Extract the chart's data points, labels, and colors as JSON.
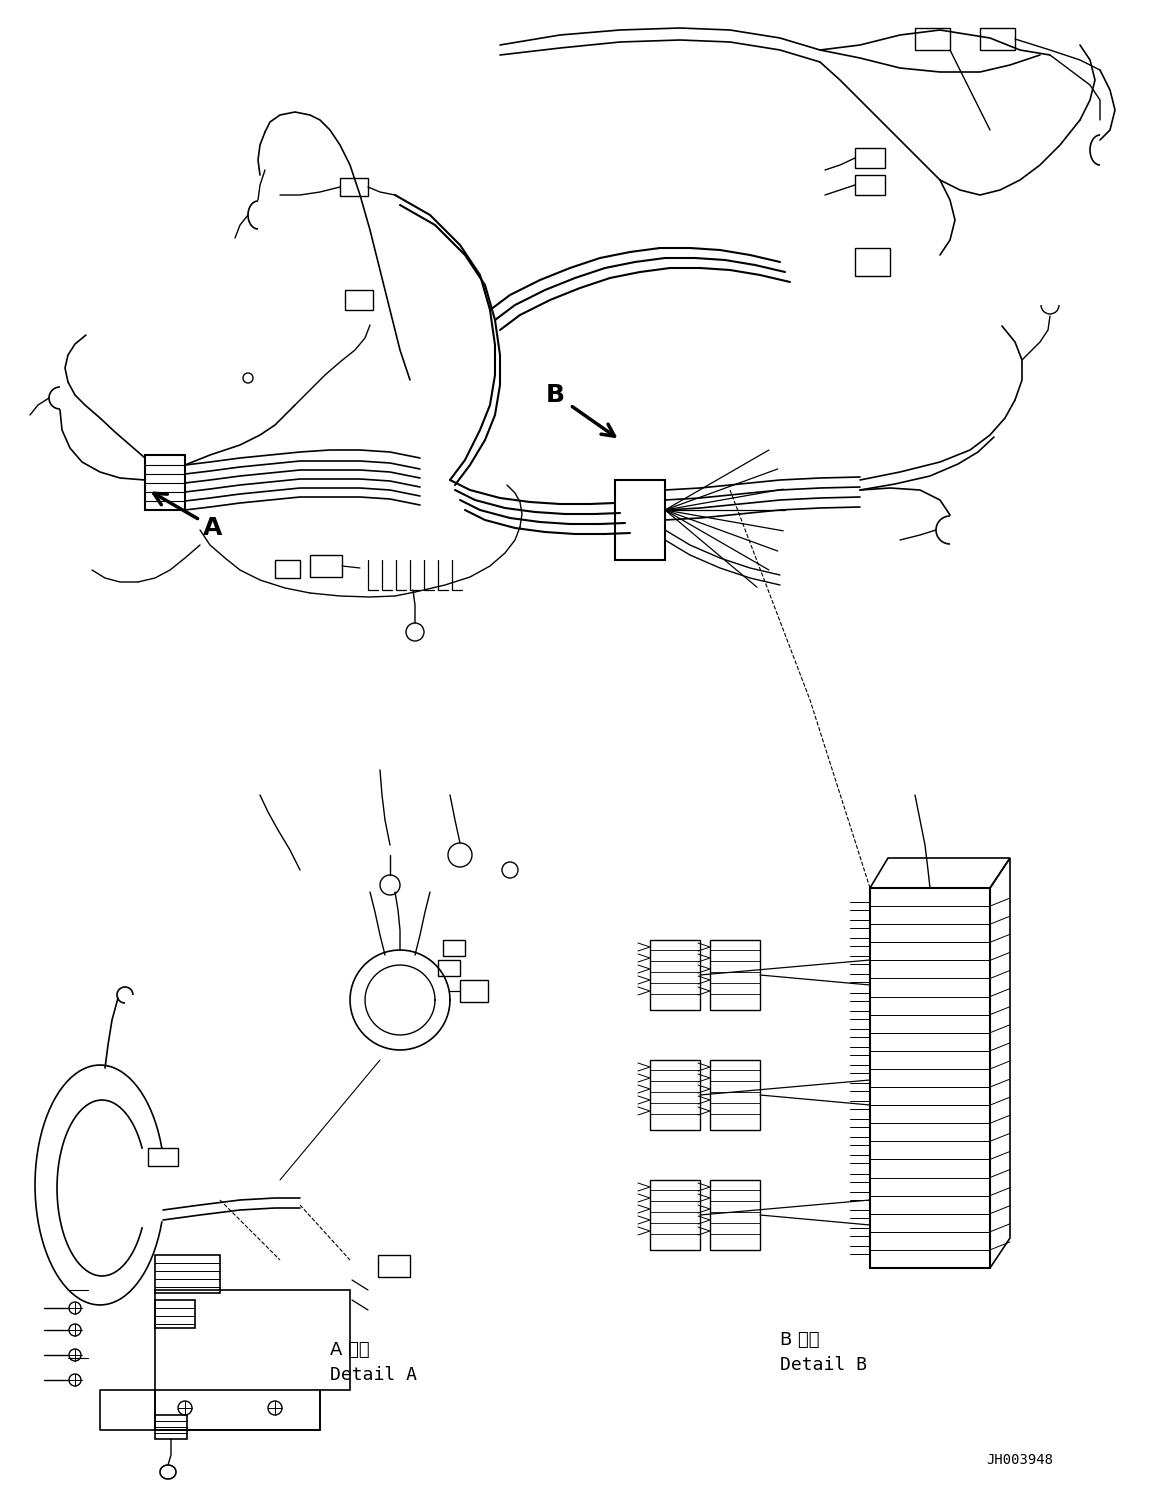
{
  "background_color": "#ffffff",
  "line_color": "#000000",
  "label_A_japanese": "A 詳細",
  "label_A_english": "Detail A",
  "label_B_japanese": "B 詳細",
  "label_B_english": "Detail B",
  "ref_number": "JH003948",
  "figsize": [
    11.63,
    14.88
  ],
  "dpi": 100
}
